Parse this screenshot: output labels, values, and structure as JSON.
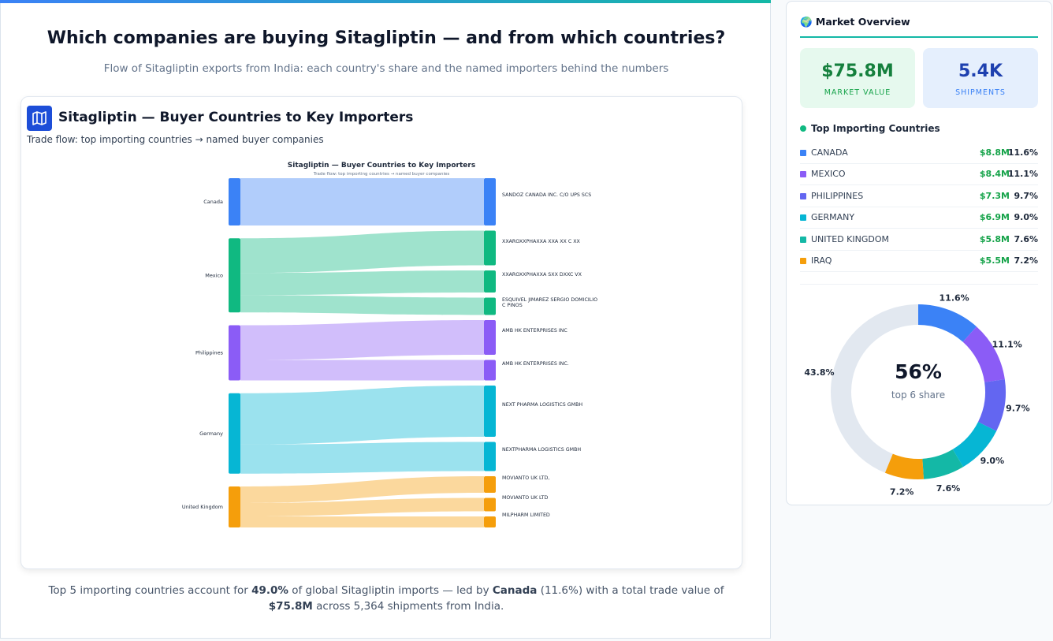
{
  "header": {
    "title": "Which companies are buying Sitagliptin — and from which countries?",
    "subtitle": "Flow of Sitagliptin exports from India: each country's share and the named importers behind the numbers"
  },
  "card": {
    "title": "Sitagliptin — Buyer Countries to Key Importers",
    "subtitle": "Trade flow: top importing countries → named buyer companies"
  },
  "chart_data": [
    {
      "type": "sankey",
      "title": "Sitagliptin — Buyer Countries to Key Importers",
      "subtitle": "Trade flow: top importing countries → named buyer companies",
      "sources": [
        {
          "name": "Canada",
          "color": "#3b82f6",
          "buyers": [
            {
              "name": "SANDOZ CANADA INC. C/O UPS SCS",
              "value": 60
            }
          ]
        },
        {
          "name": "Mexico",
          "color": "#10b981",
          "buyers": [
            {
              "name": "XXAROXXPHAXXA XXA XX C XX",
              "value": 44
            },
            {
              "name": "XXAROXXPHAXXA SXX DXXC VX",
              "value": 28
            },
            {
              "name": "ESQUIVEL JIMAREZ SERGIO DOMICILIO C PINOS",
              "value": 22
            }
          ]
        },
        {
          "name": "Philippines",
          "color": "#8b5cf6",
          "buyers": [
            {
              "name": "AMB HK ENTERPRISES INC",
              "value": 44
            },
            {
              "name": "AMB HK ENTERPRISES INC.",
              "value": 26
            }
          ]
        },
        {
          "name": "Germany",
          "color": "#06b6d4",
          "buyers": [
            {
              "name": "NEXT PHARMA LOGISTICS GMBH",
              "value": 65
            },
            {
              "name": "NEXTPHARMA LOGISTICS GMBH",
              "value": 37
            }
          ]
        },
        {
          "name": "United Kingdom",
          "color": "#f59e0b",
          "buyers": [
            {
              "name": "MOVIANTO UK LTD,",
              "value": 21
            },
            {
              "name": "MOVIANTO UK LTD",
              "value": 17
            },
            {
              "name": "MILPHARM LIMITED",
              "value": 14
            }
          ]
        }
      ]
    },
    {
      "type": "donut",
      "values": [
        11.6,
        11.1,
        9.7,
        9,
        7.6,
        7.2,
        43.8
      ],
      "value_labels": [
        "11.6%",
        "11.1%",
        "9.7%",
        "9.0%",
        "7.6%",
        "7.2%",
        "43.8%"
      ],
      "colors": [
        "#3b82f6",
        "#8b5cf6",
        "#6366f1",
        "#06b6d4",
        "#14b8a6",
        "#f59e0b",
        "#e2e8f0"
      ],
      "center_label": "56%",
      "center_sublabel": "top 6 share"
    }
  ],
  "overview": {
    "title": "🌍 Market Overview",
    "stats": [
      {
        "value": "$75.8M",
        "label": "MARKET VALUE"
      },
      {
        "value": "5.4K",
        "label": "SHIPMENTS"
      }
    ],
    "list_title": "Top Importing Countries",
    "rows": [
      [
        "CANADA",
        "$8.8M",
        "11.6%"
      ],
      [
        "MEXICO",
        "$8.4M",
        "11.1%"
      ],
      [
        "PHILIPPINES",
        "$7.3M",
        "9.7%"
      ],
      [
        "GERMANY",
        "$6.9M",
        "9.0%"
      ],
      [
        "UNITED KINGDOM",
        "$5.8M",
        "7.6%"
      ],
      [
        "IRAQ",
        "$5.5M",
        "7.2%"
      ]
    ]
  },
  "footer": [
    "Top 5 importing countries account for ",
    "49.0%",
    " of global Sitagliptin imports — led by ",
    "Canada",
    " (11.6%) with a total trade value of ",
    "$75.8M",
    " across 5,364 shipments from India."
  ]
}
